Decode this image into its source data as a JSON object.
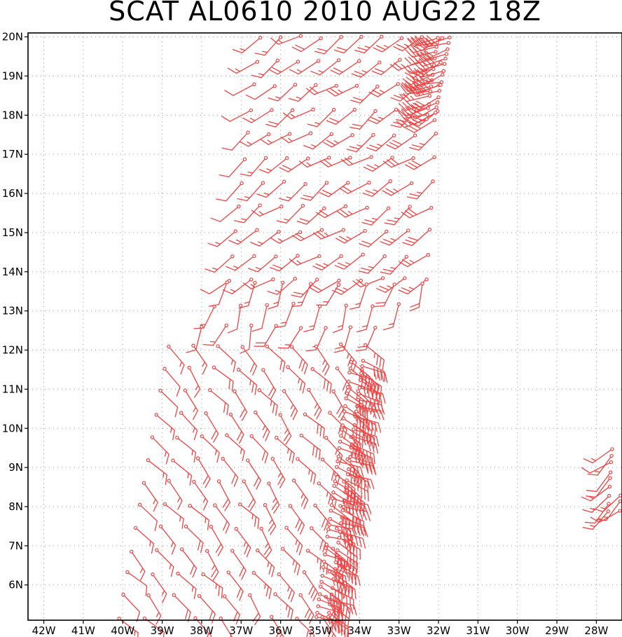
{
  "map": {
    "title": "SCAT AL0610 2010 AUG22 18Z",
    "lon_range": [
      -42.4,
      -27.35
    ],
    "lat_range": [
      5.1,
      20.1
    ],
    "colors": {
      "barb": "#ee4444",
      "frame": "#000000",
      "grid": "#9a9a9a",
      "background": "#ffffff"
    },
    "lat_labels": [
      "6N",
      "7N",
      "8N",
      "9N",
      "10N",
      "11N",
      "12N",
      "13N",
      "14N",
      "15N",
      "16N",
      "17N",
      "18N",
      "19N",
      "20N"
    ],
    "lon_labels": [
      "42W",
      "41W",
      "40W",
      "39W",
      "38W",
      "37W",
      "36W",
      "35W",
      "34W",
      "33W",
      "32W",
      "31W",
      "30W",
      "29W",
      "28W"
    ],
    "swaths": [
      {
        "name": "northern swath",
        "west_edge": [
          [
            -37.3,
            13.8
          ],
          [
            -36.5,
            20.1
          ]
        ],
        "east_edge": [
          [
            -32.3,
            13.8
          ],
          [
            -31.9,
            20.1
          ]
        ],
        "lat_step": 0.62,
        "cols": 10,
        "wind_from_deg": 235,
        "east_speed_kt": 30,
        "west_speed_kt": 15
      },
      {
        "name": "northern swath south edge",
        "west_edge": [
          [
            -38.0,
            12.6
          ],
          [
            -37.3,
            13.8
          ]
        ],
        "east_edge": [
          [
            -33.6,
            12.6
          ],
          [
            -32.3,
            13.8
          ]
        ],
        "lat_step": 0.55,
        "cols": 8,
        "wind_from_deg": 200,
        "east_speed_kt": 20,
        "west_speed_kt": 15
      },
      {
        "name": "southern swath",
        "west_edge": [
          [
            -40.1,
            5.1
          ],
          [
            -38.8,
            12.3
          ]
        ],
        "east_edge": [
          [
            -34.95,
            5.1
          ],
          [
            -33.9,
            11.8
          ]
        ],
        "lat_step": 0.58,
        "cols": 9,
        "wind_from_deg": 140,
        "east_speed_kt": 35,
        "west_speed_kt": 15
      },
      {
        "name": "southern swath east edge",
        "west_edge": [
          [
            -35.1,
            5.1
          ],
          [
            -34.2,
            11.8
          ]
        ],
        "east_edge": [
          [
            -34.8,
            5.1
          ],
          [
            -33.9,
            11.8
          ]
        ],
        "lat_step": 0.16,
        "cols": 2,
        "wind_from_deg": 115,
        "east_speed_kt": 40,
        "west_speed_kt": 35
      },
      {
        "name": "northern swath east edge",
        "west_edge": [
          [
            -32.3,
            17.9
          ],
          [
            -32.0,
            20.1
          ]
        ],
        "east_edge": [
          [
            -32.1,
            17.9
          ],
          [
            -31.7,
            20.1
          ]
        ],
        "lat_step": 0.14,
        "cols": 2,
        "wind_from_deg": 250,
        "east_speed_kt": 35,
        "west_speed_kt": 30
      },
      {
        "name": "far east fragment",
        "west_edge": [
          [
            -27.7,
            7.9
          ],
          [
            -27.6,
            9.5
          ]
        ],
        "east_edge": [
          [
            -27.4,
            7.9
          ],
          [
            -27.35,
            9.5
          ]
        ],
        "lat_step": 0.2,
        "cols": 2,
        "wind_from_deg": 230,
        "east_speed_kt": 20,
        "west_speed_kt": 15
      }
    ]
  }
}
